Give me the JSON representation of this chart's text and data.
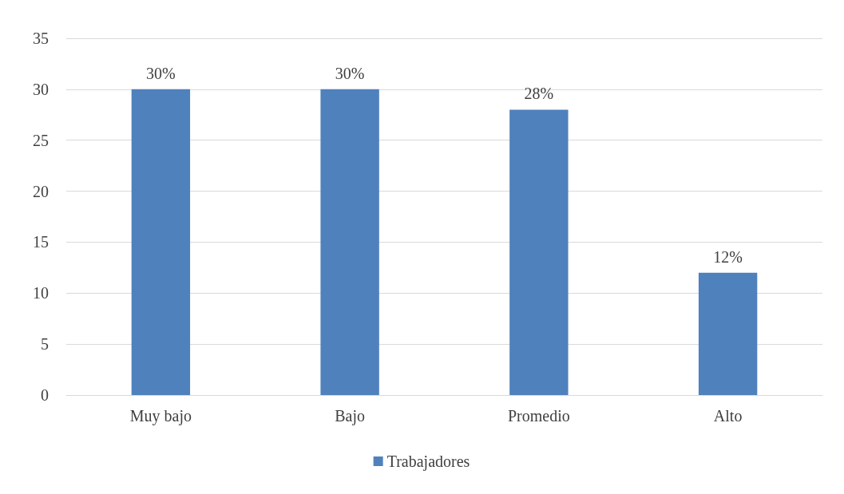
{
  "chart_data": {
    "type": "bar",
    "categories": [
      "Muy bajo",
      "Bajo",
      "Promedio",
      "Alto"
    ],
    "series": [
      {
        "name": "Trabajadores",
        "color": "#4f81bd",
        "values": [
          30,
          30,
          28,
          12
        ],
        "value_labels": [
          "30%",
          "30%",
          "28%",
          "12%"
        ]
      }
    ],
    "ylim": [
      0,
      35
    ],
    "yticks": [
      0,
      5,
      10,
      15,
      20,
      25,
      30,
      35
    ],
    "grid": "y",
    "legend": "bottom"
  }
}
